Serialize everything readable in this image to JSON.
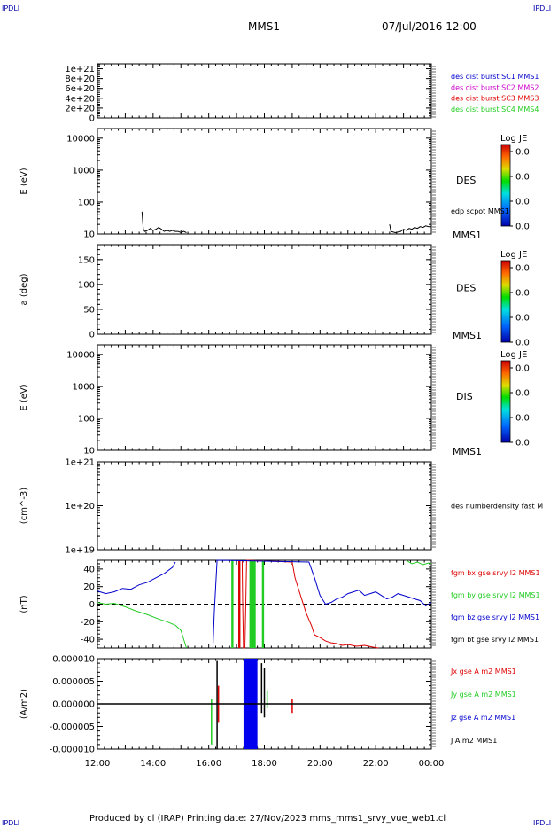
{
  "header": {
    "corner_tl": "IPDLI",
    "corner_tr": "IPDLI",
    "corner_bl": "IPDLI",
    "corner_br": "IPDLI",
    "spacecraft": "MMS1",
    "datetime": "07/Jul/2016 12:00"
  },
  "footer": {
    "text": "Produced by cl (IRAP)   Printing date: 27/Nov/2023   mms_mms1_srvy_vue_web1.cl"
  },
  "colors": {
    "black": "#000000",
    "red": "#dd0000",
    "green": "#22cc22",
    "blue": "#0000cc",
    "magenta": "#cc00cc"
  },
  "colorbar": {
    "title": "Log JE",
    "tick_labels": [
      "0.0",
      "0.0",
      "0.0",
      "0.0"
    ]
  },
  "chart_data": [
    {
      "id": "dist-burst",
      "type": "line",
      "ylim": [
        0,
        1.1e+21
      ],
      "yticks": [
        0,
        2e+20,
        4e+20,
        6e+20,
        8e+20,
        1e+21
      ],
      "ytick_labels": [
        "0",
        "2e+20",
        "4e+20",
        "6e+20",
        "8e+20",
        "1e+21"
      ],
      "ylabel": "",
      "reference_line": 0,
      "series": [
        {
          "name": "des dist burst SC1 MMS1",
          "color": "#0000cc",
          "values": []
        },
        {
          "name": "des dist burst SC2 MMS2",
          "color": "#cc00cc",
          "values": []
        },
        {
          "name": "des dist burst SC3 MMS3",
          "color": "#dd0000",
          "values": []
        },
        {
          "name": "des dist burst SC4 MMS4",
          "color": "#22cc22",
          "values": []
        }
      ]
    },
    {
      "id": "des-energy",
      "type": "heatmap",
      "ylabel": "E (eV)",
      "yscale": "log",
      "ylim": [
        10,
        20000
      ],
      "yticks": [
        10,
        100,
        1000,
        10000
      ],
      "ytick_labels": [
        "10",
        "100",
        "1000",
        "10000"
      ],
      "label": "DES",
      "label_sc": "MMS1",
      "overlay": {
        "name": "edp scpot MMS1",
        "color": "#000000",
        "segments": [
          {
            "x": [
              13.6,
              13.65,
              13.7,
              13.8,
              13.9,
              14.0,
              14.1,
              14.2,
              14.3,
              14.4,
              14.5,
              14.6,
              14.7,
              14.8,
              14.9,
              15.0,
              15.1,
              15.2
            ],
            "y": [
              50,
              14,
              12,
              13,
              15,
              13,
              14,
              16,
              14,
              12,
              13,
              12,
              13,
              12,
              12,
              11,
              12,
              11
            ]
          },
          {
            "x": [
              22.5,
              22.55,
              22.7,
              22.9,
              23.0,
              23.1,
              23.2,
              23.3,
              23.4,
              23.5,
              23.6,
              23.7,
              23.8,
              23.9,
              24.0
            ],
            "y": [
              20,
              12,
              11,
              12,
              14,
              13,
              15,
              14,
              16,
              15,
              17,
              16,
              18,
              17,
              17
            ]
          }
        ]
      }
    },
    {
      "id": "des-pitch",
      "type": "heatmap",
      "ylabel": "a (deg)",
      "ylim": [
        0,
        180
      ],
      "yticks": [
        0,
        50,
        100,
        150
      ],
      "ytick_labels": [
        "0",
        "50",
        "100",
        "150"
      ],
      "label": "DES",
      "label_sc": "MMS1"
    },
    {
      "id": "dis-energy",
      "type": "heatmap",
      "ylabel": "E (eV)",
      "yscale": "log",
      "ylim": [
        10,
        20000
      ],
      "yticks": [
        10,
        100,
        1000,
        10000
      ],
      "ytick_labels": [
        "10",
        "100",
        "1000",
        "10000"
      ],
      "label": "DIS",
      "label_sc": "MMS1"
    },
    {
      "id": "numberdensity",
      "type": "line",
      "ylabel": "(cm^-3)",
      "yscale": "log",
      "ylim": [
        1e+19,
        1e+21
      ],
      "yticks": [
        1e+19,
        1e+20,
        1e+21
      ],
      "ytick_labels": [
        "1e+19",
        "1e+20",
        "1e+21"
      ],
      "series": [
        {
          "name": "des numberdensity fast M",
          "color": "#000000",
          "values": []
        }
      ]
    },
    {
      "id": "fgm",
      "type": "line",
      "ylabel": "(nT)",
      "ylim": [
        -50,
        50
      ],
      "yticks": [
        -40,
        -20,
        0,
        20,
        40
      ],
      "ytick_labels": [
        "-40",
        "-20",
        "0",
        "20",
        "40"
      ],
      "reference_line": 0,
      "series": [
        {
          "name": "fgm bx gse srvy l2 MMS1",
          "color": "#dd0000",
          "x": [
            17.2,
            17.22,
            17.25,
            17.3,
            17.33,
            17.36,
            19.0,
            19.1,
            19.3,
            19.5,
            19.7,
            19.8,
            20.0,
            20.2,
            20.4,
            20.6,
            20.8,
            21.0,
            21.3,
            21.6,
            21.9,
            22.1
          ],
          "values": [
            50,
            0,
            -50,
            -50,
            0,
            50,
            48,
            30,
            10,
            -10,
            -25,
            -35,
            -38,
            -42,
            -44,
            -45,
            -47,
            -46,
            -48,
            -47,
            -49,
            -50
          ]
        },
        {
          "name": "fgm by gse srvy l2 MMS1",
          "color": "#22cc22",
          "x": [
            12.0,
            12.3,
            12.6,
            13.0,
            13.4,
            13.8,
            14.2,
            14.5,
            14.8,
            15.0,
            15.1,
            15.2
          ],
          "values": [
            2,
            0,
            1,
            -3,
            -8,
            -12,
            -17,
            -20,
            -24,
            -30,
            -40,
            -50
          ],
          "extra_x": [
            23.1,
            23.3,
            23.5,
            23.7,
            23.9,
            24.0
          ],
          "extra_values": [
            50,
            46,
            48,
            45,
            47,
            46
          ]
        },
        {
          "name": "fgm bz gse srvy l2 MMS1",
          "color": "#0000cc",
          "x": [
            12.0,
            12.3,
            12.6,
            12.9,
            13.2,
            13.5,
            13.8,
            14.1,
            14.4,
            14.7,
            14.8
          ],
          "values": [
            15,
            12,
            14,
            18,
            17,
            22,
            25,
            30,
            35,
            42,
            48
          ],
          "extra_x": [
            16.15,
            16.2,
            16.25,
            16.3,
            19.6,
            19.8,
            20.0,
            20.2,
            20.4,
            20.6,
            20.8,
            21.0,
            21.2,
            21.4,
            21.6,
            21.8,
            22.0,
            22.2,
            22.4,
            22.6,
            22.8,
            23.0,
            23.2,
            23.4,
            23.6,
            23.8,
            24.0
          ],
          "extra_values": [
            -50,
            -10,
            20,
            50,
            48,
            30,
            10,
            0,
            2,
            6,
            8,
            12,
            14,
            16,
            10,
            12,
            14,
            10,
            6,
            8,
            12,
            10,
            8,
            6,
            4,
            -2,
            2
          ]
        },
        {
          "name": "fgm bt gse srvy l2 MMS1",
          "color": "#000000",
          "values": []
        }
      ],
      "vertical_marks": [
        {
          "x": 16.85,
          "color": "#22cc22"
        },
        {
          "x": 17.1,
          "color": "#dd0000"
        },
        {
          "x": 17.5,
          "color": "#22cc22"
        },
        {
          "x": 17.6,
          "color": "#22cc22"
        },
        {
          "x": 17.65,
          "color": "#22cc22"
        },
        {
          "x": 17.95,
          "color": "#22cc22"
        }
      ]
    },
    {
      "id": "current",
      "type": "line",
      "ylabel": "(A/m2)",
      "ylim": [
        -1e-05,
        1e-05
      ],
      "yticks": [
        -1e-05,
        -5e-06,
        0,
        5e-06,
        1e-05
      ],
      "ytick_labels": [
        "-0.000010",
        "-0.000005",
        "0.000000",
        "0.000005",
        "0.000010"
      ],
      "series": [
        {
          "name": "Jx gse A m2 MMS1",
          "color": "#dd0000",
          "values": []
        },
        {
          "name": "Jy gse A m2 MMS1",
          "color": "#22cc22",
          "values": []
        },
        {
          "name": "Jz gse A m2 MMS1",
          "color": "#0000cc",
          "values": []
        },
        {
          "name": "J A m2 MMS1",
          "color": "#000000",
          "values": []
        }
      ],
      "spikes": [
        {
          "x": 16.1,
          "values": [
            -9e-06,
            1e-06
          ],
          "color": "#22cc22"
        },
        {
          "x": 16.3,
          "values": [
            -1e-05,
            9.5e-06
          ],
          "color": "#000000"
        },
        {
          "x": 16.35,
          "values": [
            -4e-06,
            4e-06
          ],
          "color": "#dd0000"
        },
        {
          "x": 17.9,
          "values": [
            -2e-06,
            9e-06
          ],
          "color": "#000000"
        },
        {
          "x": 18.0,
          "values": [
            -3e-06,
            8e-06
          ],
          "color": "#000000"
        },
        {
          "x": 18.1,
          "values": [
            -1e-06,
            3e-06
          ],
          "color": "#22cc22"
        },
        {
          "x": 19.0,
          "values": [
            -2e-06,
            1e-06
          ],
          "color": "#dd0000"
        }
      ],
      "band": {
        "x0": 17.25,
        "x1": 17.75,
        "color": "#0000ee"
      }
    }
  ],
  "xaxis": {
    "range": [
      12,
      24
    ],
    "ticks": [
      12,
      14,
      16,
      18,
      20,
      22,
      24
    ],
    "tick_labels": [
      "12:00",
      "14:00",
      "16:00",
      "18:00",
      "20:00",
      "22:00",
      "00:00"
    ]
  }
}
